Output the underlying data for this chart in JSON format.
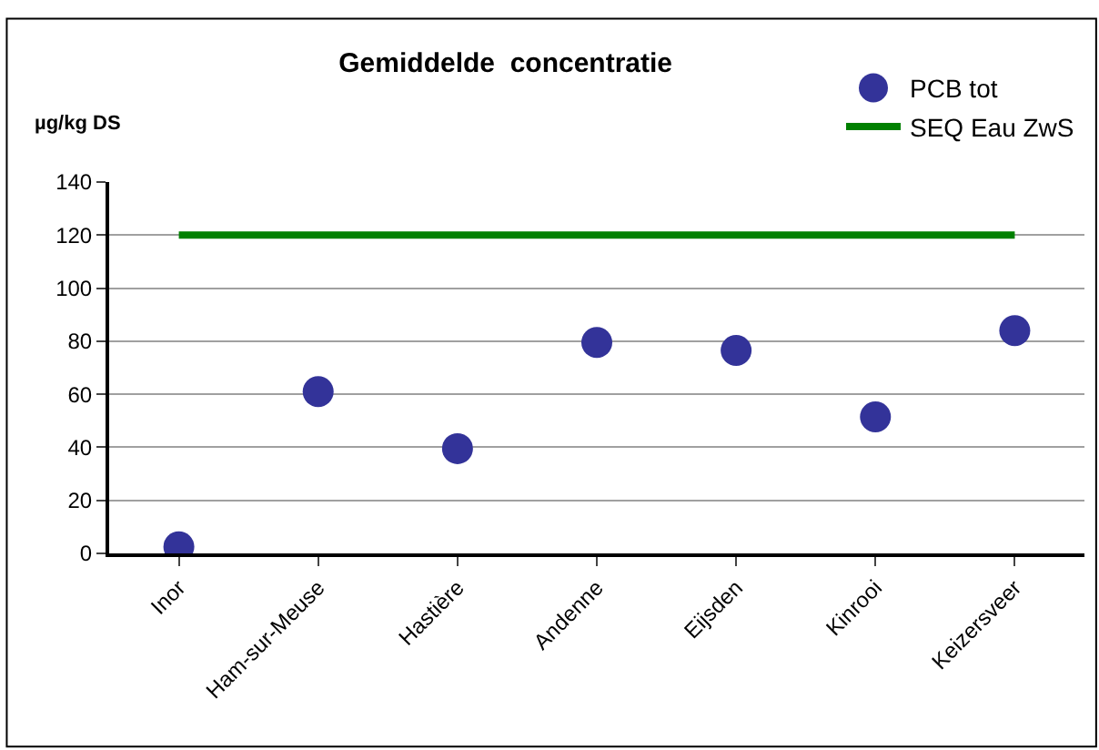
{
  "chart_data": {
    "type": "scatter",
    "title": "Gemiddelde  concentratie",
    "ylabel": "µg/kg DS",
    "categories": [
      "Inor",
      "Ham-sur-Meuse",
      "Hastière",
      "Andenne",
      "Eijsden",
      "Kinrooi",
      "Keizersveer"
    ],
    "series": [
      {
        "name": "PCB tot",
        "color": "#333399",
        "marker": "circle",
        "values": [
          2.5,
          61,
          39.5,
          79.5,
          76.5,
          51.5,
          84
        ]
      },
      {
        "name": "SEQ Eau ZwS",
        "type": "line",
        "color": "#008000",
        "marker": "none",
        "values": [
          120,
          120,
          120,
          120,
          120,
          120,
          120
        ]
      }
    ],
    "ylim": [
      0,
      140
    ],
    "yticks": [
      0,
      20,
      40,
      60,
      80,
      100,
      120,
      140
    ],
    "grid": "y",
    "legend": "top right"
  }
}
